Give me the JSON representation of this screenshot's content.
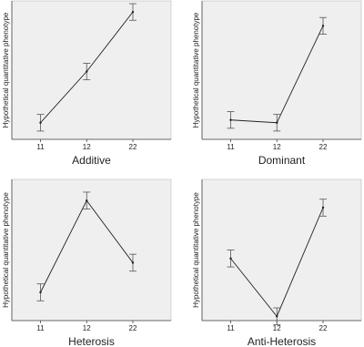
{
  "chart_data": [
    {
      "type": "line",
      "xlabel": "Additive",
      "ylabel": "Hypothetical quantitative phenotype",
      "categories": [
        "11",
        "12",
        "22"
      ],
      "values": [
        12,
        49,
        92
      ],
      "errors": [
        6,
        6,
        6
      ],
      "ylim": [
        0,
        100
      ],
      "color": "#222222"
    },
    {
      "type": "line",
      "xlabel": "Dominant",
      "ylabel": "Hypothetical quantitative phenotype",
      "categories": [
        "11",
        "12",
        "22"
      ],
      "values": [
        14,
        12,
        82
      ],
      "errors": [
        6,
        6,
        6
      ],
      "ylim": [
        0,
        100
      ],
      "color": "#222222"
    },
    {
      "type": "line",
      "xlabel": "Heterosis",
      "ylabel": "Hypothetical quantitative phenotype",
      "categories": [
        "11",
        "12",
        "22"
      ],
      "values": [
        20,
        85,
        41
      ],
      "errors": [
        6,
        6,
        6
      ],
      "ylim": [
        0,
        100
      ],
      "color": "#222222"
    },
    {
      "type": "line",
      "xlabel": "Anti-Heterosis",
      "ylabel": "Hypothetical quantitative phenotype",
      "categories": [
        "11",
        "12",
        "22"
      ],
      "values": [
        44,
        3,
        80
      ],
      "errors": [
        6,
        6,
        6
      ],
      "ylim": [
        0,
        100
      ],
      "color": "#222222"
    }
  ]
}
